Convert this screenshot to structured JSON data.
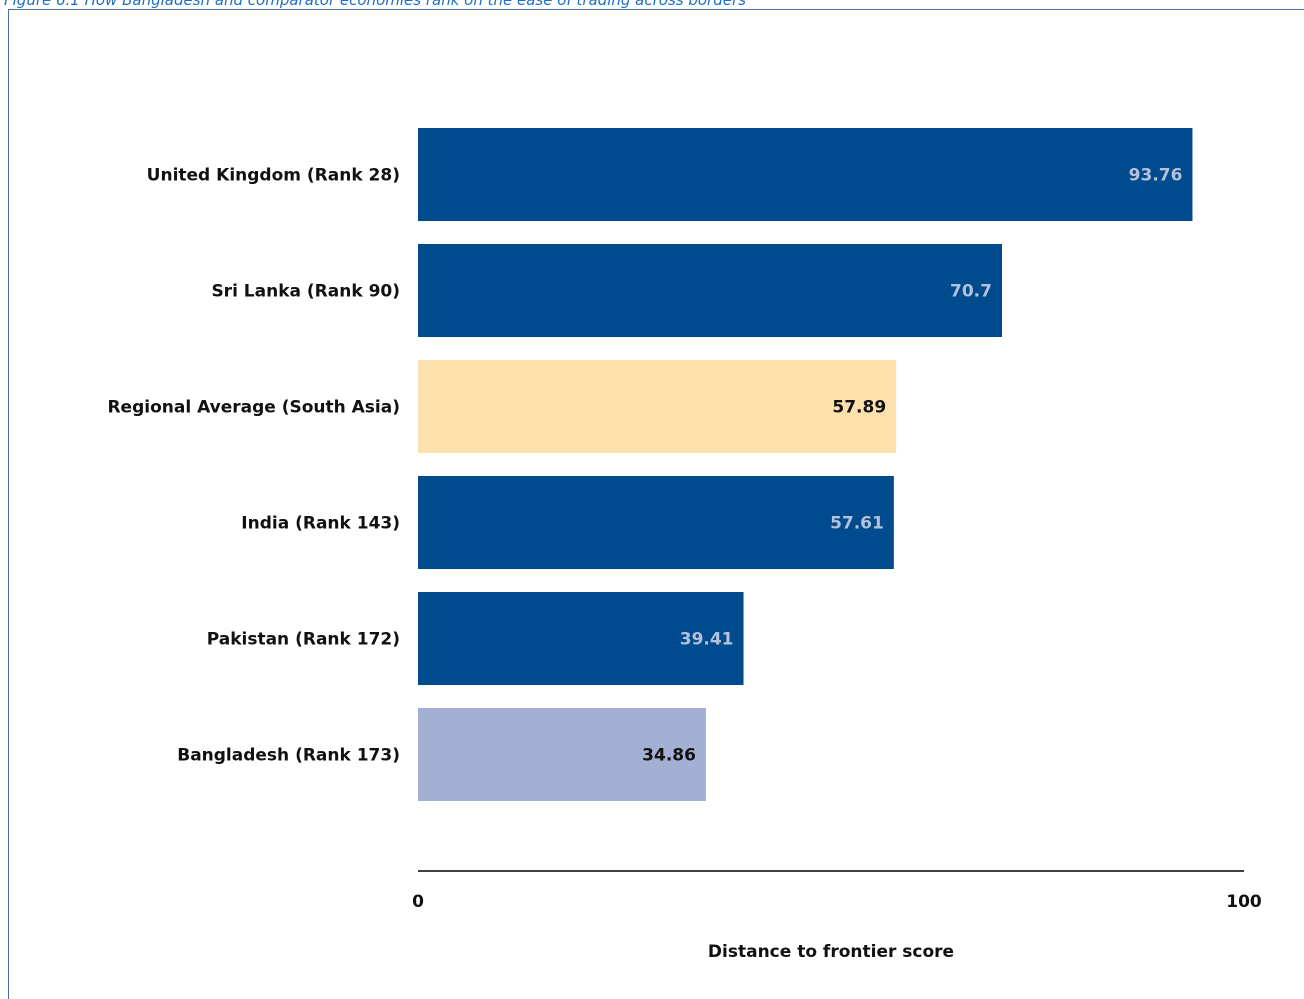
{
  "caption": "Figure 6.1 How Bangladesh and comparator economies rank on the ease of trading across borders",
  "chart_data": {
    "type": "bar",
    "orientation": "horizontal",
    "categories": [
      "United Kingdom (Rank 28)",
      "Sri Lanka (Rank 90)",
      "Regional Average (South Asia)",
      "India (Rank 143)",
      "Pakistan (Rank 172)",
      "Bangladesh (Rank 173)"
    ],
    "values": [
      93.76,
      70.7,
      57.89,
      57.61,
      39.41,
      34.86
    ],
    "value_labels": [
      "93.76",
      "70.7",
      "57.89",
      "57.61",
      "39.41",
      "34.86"
    ],
    "bar_colors": [
      "#004b8d",
      "#004b8d",
      "#fde1ad",
      "#004b8d",
      "#004b8d",
      "#a4b0d3"
    ],
    "label_colors": [
      "#b3c2da",
      "#b3c2da",
      "#111111",
      "#b3c2da",
      "#b3c2da",
      "#111111"
    ],
    "xlabel": "Distance to frontier score",
    "xlim": [
      0,
      100
    ],
    "xticks": [
      "0",
      "100"
    ],
    "grid": false,
    "legend": "none"
  }
}
